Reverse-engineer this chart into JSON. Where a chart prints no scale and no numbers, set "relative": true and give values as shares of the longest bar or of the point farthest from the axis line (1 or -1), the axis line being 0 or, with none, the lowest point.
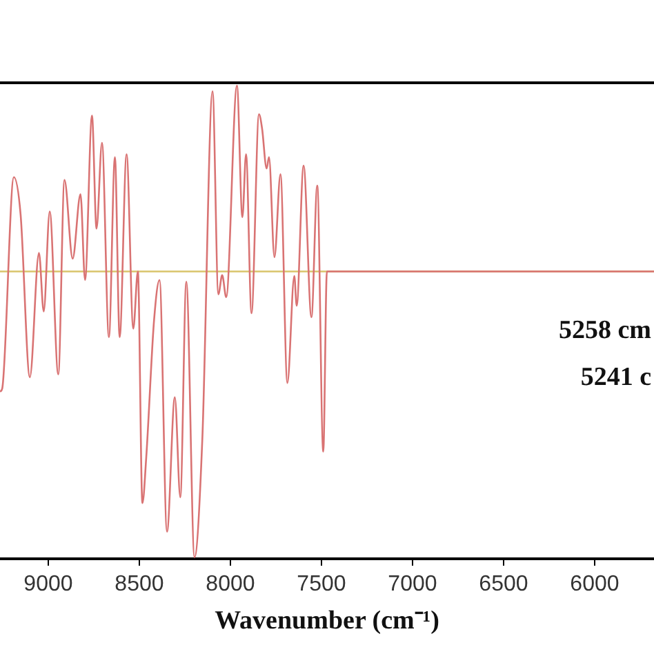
{
  "chart_data": {
    "type": "line",
    "xlabel": "Wavenumber (cm⁻¹)",
    "relative": true,
    "tick_labels": "x",
    "grid": false,
    "legend": false,
    "marker": "none",
    "line_style": "solid",
    "xlim": [
      9265,
      5674
    ],
    "xticks": [
      9000,
      8500,
      8000,
      7500,
      7000,
      6500,
      6000
    ],
    "x": [
      9265,
      9253,
      9189,
      9152,
      9101,
      9051,
      9025,
      8992,
      8945,
      8911,
      8866,
      8823,
      8798,
      8760,
      8735,
      8705,
      8667,
      8634,
      8608,
      8570,
      8533,
      8508,
      8483,
      8462,
      8419,
      8389,
      8348,
      8305,
      8275,
      8242,
      8197,
      8154,
      8098,
      8066,
      8045,
      8023,
      7964,
      7934,
      7914,
      7884,
      7843,
      7826,
      7801,
      7788,
      7758,
      7725,
      7687,
      7649,
      7636,
      7598,
      7555,
      7523,
      7490,
      7470,
      5674
    ],
    "series": [
      {
        "color": "#d97373",
        "values": [
          -0.42,
          -0.41,
          0.33,
          0.2,
          -0.37,
          0.065,
          -0.14,
          0.21,
          -0.36,
          0.32,
          0.045,
          0.27,
          -0.03,
          0.545,
          0.15,
          0.45,
          -0.23,
          0.4,
          -0.23,
          0.41,
          -0.2,
          0,
          -0.81,
          -0.65,
          -0.17,
          -0.03,
          -0.91,
          -0.44,
          -0.79,
          -0.036,
          -1,
          -0.585,
          0.63,
          -0.08,
          -0.013,
          -0.09,
          0.65,
          0.19,
          0.41,
          -0.146,
          0.55,
          0.5,
          0.36,
          0.4,
          0.05,
          0.34,
          -0.39,
          -0.016,
          -0.12,
          0.37,
          -0.16,
          0.3,
          -0.63,
          0,
          0
        ]
      }
    ],
    "ref_lines": [
      {
        "axis": "y",
        "value": 0,
        "color": "#d9c46a"
      }
    ],
    "annotations": [
      "5258 cm",
      "5241 c"
    ]
  }
}
